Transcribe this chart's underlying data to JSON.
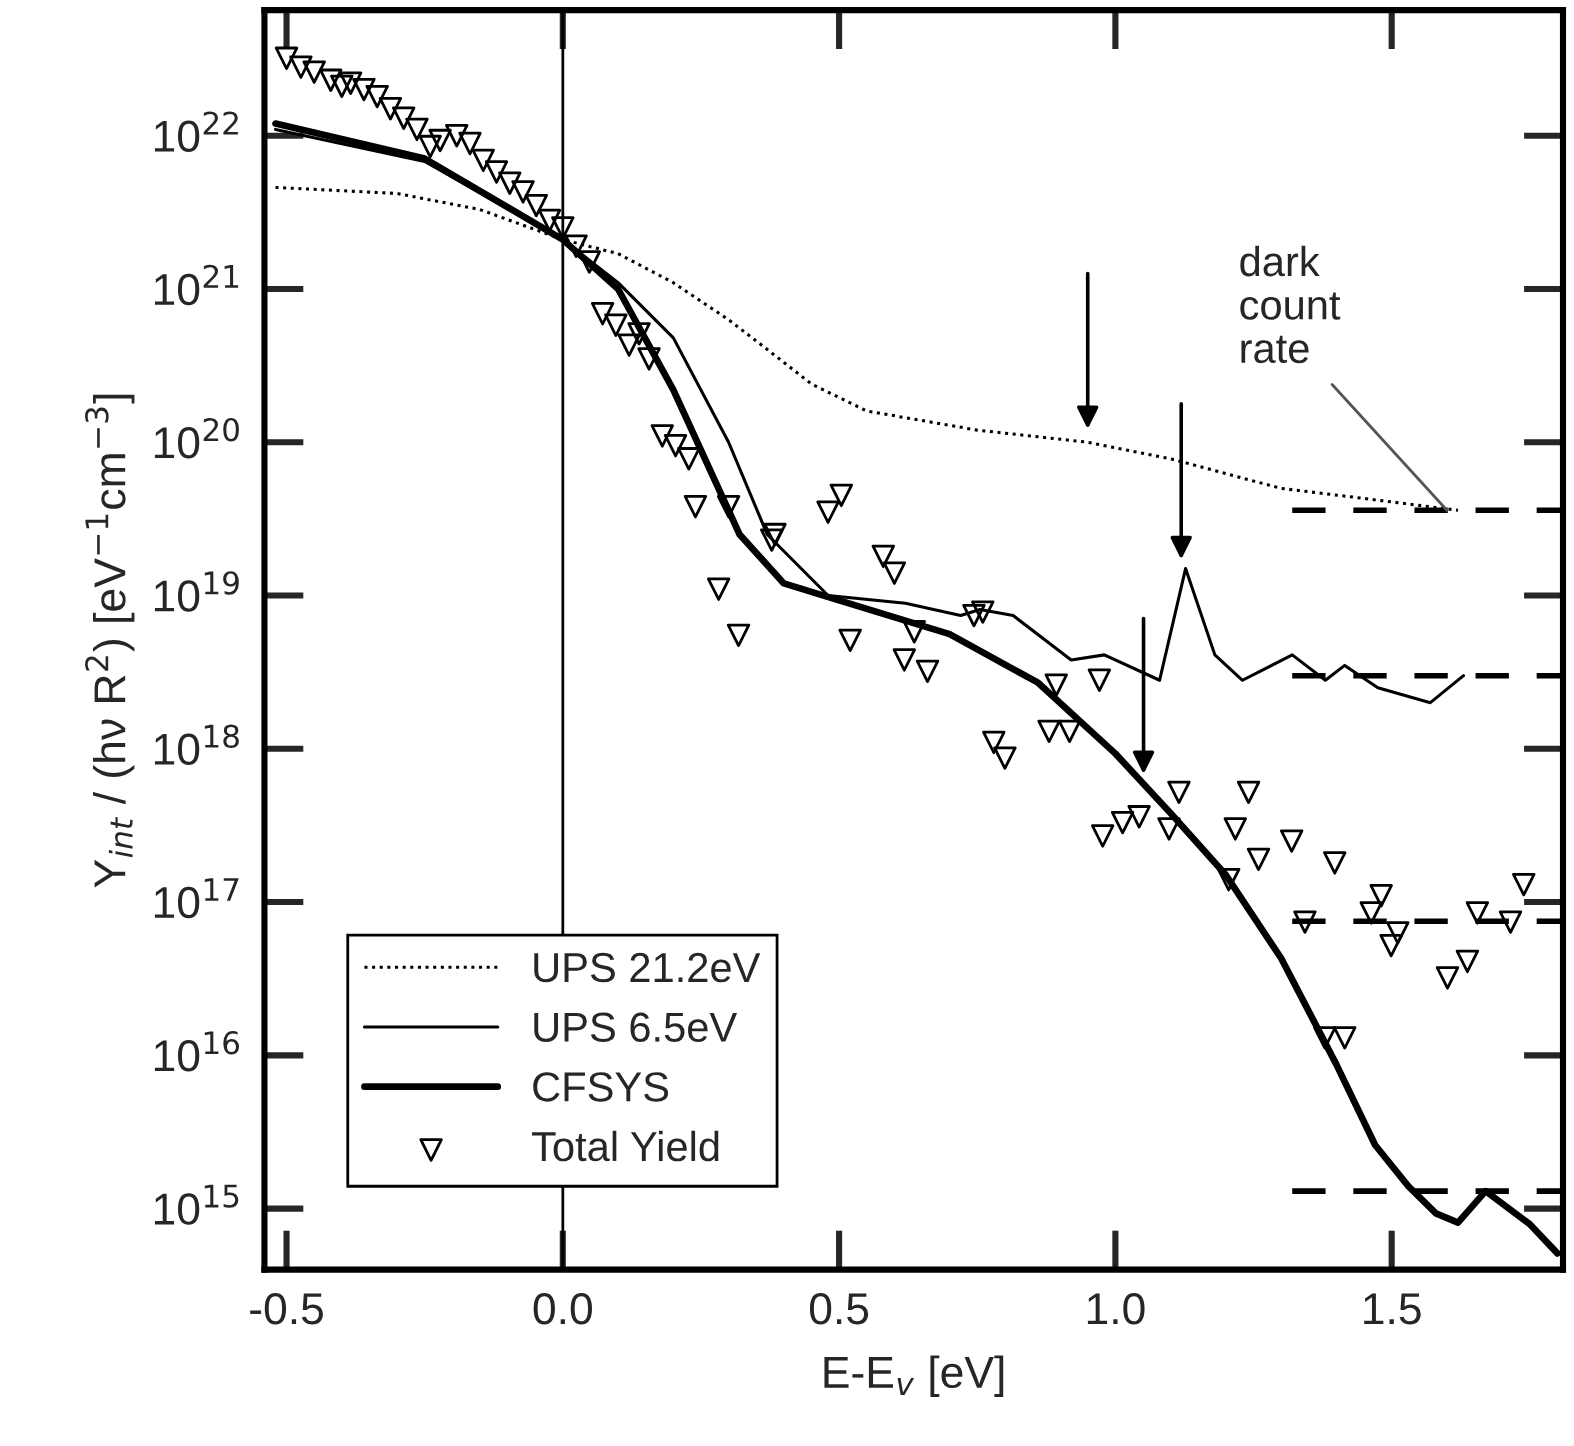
{
  "chart_data": {
    "type": "line",
    "xlabel": "E-E$_{v}$ [eV]",
    "ylabel": "Y$_{int}$ / (hν R$^{2}$) [eV$^{−1}$cm$^{−3}$]",
    "log": "y",
    "xlim": [
      -0.54,
      1.81
    ],
    "ylim": [
      400000000000000.0,
      6.6e+22
    ],
    "xticks": [
      -0.5,
      {
        "value": 0,
        "label": "0.0"
      },
      0.5,
      {
        "value": 1,
        "label": "1.0"
      },
      1.5
    ],
    "yticks": [
      {
        "value": 1000000000000000.0,
        "label": "10$^{15}$"
      },
      {
        "value": 1e+16,
        "label": "10$^{16}$"
      },
      {
        "value": 1e+17,
        "label": "10$^{17}$"
      },
      {
        "value": 1e+18,
        "label": "10$^{18}$"
      },
      {
        "value": 1e+19,
        "label": "10$^{19}$"
      },
      {
        "value": 1e+20,
        "label": "10$^{20}$"
      },
      {
        "value": 1e+21,
        "label": "10$^{21}$"
      },
      {
        "value": 1e+22,
        "label": "10$^{22}$"
      }
    ],
    "legend": "bottom left",
    "ref_lines": [
      {
        "axis": "x",
        "value": 0,
        "color": "#000000",
        "line_style": "solid"
      }
    ],
    "annotations": [
      {
        "text": "dark\ncount\nrate",
        "x": 1.6,
        "y": 3.6e+19
      }
    ],
    "series": [
      {
        "name": "UPS 21.2eV",
        "color": "#000000",
        "line_style": "dotted",
        "x": [
          -0.52,
          -0.3,
          -0.15,
          0,
          0.1,
          0.2,
          0.3,
          0.36,
          0.45,
          0.55,
          0.75,
          0.95,
          1.1,
          1.3,
          1.45,
          1.62
        ],
        "values": [
          4.6e+21,
          4.2e+21,
          3.3e+21,
          2.1e+21,
          1.7e+21,
          1.1e+21,
          6.3e+20,
          4.3e+20,
          2.4e+20,
          1.6e+20,
          1.2e+20,
          1e+20,
          7.8e+19,
          5e+19,
          4.3e+19,
          3.6e+19
        ]
      },
      {
        "name": "UPS 6.5eV",
        "color": "#000000",
        "line_style": "solid",
        "x": [
          -0.52,
          -0.25,
          0,
          0.1,
          0.2,
          0.3,
          0.37,
          0.48,
          0.62,
          0.72,
          0.755,
          0.815,
          0.92,
          0.98,
          1.08,
          1.127,
          1.18,
          1.23,
          1.32,
          1.38,
          1.415,
          1.475,
          1.57,
          1.63
        ],
        "values": [
          1.1e+22,
          6.8e+21,
          2.1e+21,
          1.1e+21,
          4.8e+20,
          1e+20,
          2.5e+19,
          1e+19,
          8.9e+18,
          7.4e+18,
          8.1e+18,
          7.4e+18,
          3.8e+18,
          4.1e+18,
          2.8e+18,
          1.5e+19,
          4.1e+18,
          2.8e+18,
          4.1e+18,
          2.8e+18,
          3.5e+18,
          2.5e+18,
          2e+18,
          3e+18
        ]
      },
      {
        "name": "CFSYS",
        "color": "#000000",
        "line_style": "solid",
        "x": [
          -0.52,
          -0.25,
          0,
          0.1,
          0.2,
          0.32,
          0.4,
          0.5,
          0.7,
          0.86,
          1.0,
          1.1,
          1.2,
          1.3,
          1.4,
          1.47,
          1.53,
          1.58,
          1.62,
          1.67,
          1.75,
          1.8
        ],
        "values": [
          1.2e+22,
          7.1e+21,
          2.1e+21,
          1e+21,
          2.2e+20,
          2.5e+19,
          1.2e+19,
          9.3e+18,
          5.6e+18,
          2.7e+18,
          9.3e+17,
          3.8e+17,
          1.5e+17,
          4.3e+16,
          8700000000000000.0,
          2600000000000000.0,
          1400000000000000.0,
          930000000000000.0,
          810000000000000.0,
          1300000000000000.0,
          790000000000000.0,
          510000000000000.0
        ]
      },
      {
        "name": "Total Yield",
        "type": "scatter",
        "color": "#000000",
        "marker": "triangle",
        "x": [
          -0.5,
          -0.474,
          -0.45,
          -0.42,
          -0.4,
          -0.384,
          -0.36,
          -0.336,
          -0.312,
          -0.288,
          -0.264,
          -0.24,
          -0.222,
          -0.192,
          -0.168,
          -0.144,
          -0.12,
          -0.096,
          -0.072,
          -0.048,
          -0.024,
          0,
          0.024,
          0.048,
          0.072,
          0.096,
          0.12,
          0.138,
          0.156,
          0.18,
          0.204,
          0.228,
          0.24,
          0.3,
          0.282,
          0.318,
          0.378,
          0.384,
          0.48,
          0.504,
          0.58,
          0.6,
          0.52,
          0.636,
          0.618,
          0.66,
          0.744,
          0.76,
          0.893,
          0.971,
          0.78,
          0.8,
          0.88,
          0.917,
          0.977,
          1.013,
          1.043,
          1.097,
          1.115,
          1.205,
          1.217,
          1.241,
          1.259,
          1.319,
          1.343,
          1.397,
          1.379,
          1.415,
          1.463,
          1.481,
          1.499,
          1.511,
          1.601,
          1.637,
          1.655,
          1.715,
          1.739
        ],
        "values": [
          3.2e+22,
          2.8e+22,
          2.6e+22,
          2.3e+22,
          2.1e+22,
          2.2e+22,
          2e+22,
          1.8e+22,
          1.5e+22,
          1.3e+22,
          1.1e+22,
          8.5e+21,
          9.3e+21,
          1e+22,
          8.9e+21,
          6.9e+21,
          5.8e+21,
          4.9e+21,
          4.3e+21,
          3.5e+21,
          2.8e+21,
          2.5e+21,
          1.9e+21,
          1.5e+21,
          6.9e+20,
          5.8e+20,
          4.3e+20,
          5.1e+20,
          3.5e+20,
          1.1e+20,
          9.5e+19,
          7.8e+19,
          3.8e+19,
          3.8e+19,
          1.1e+19,
          5.5e+18,
          2.3e+19,
          2.5e+19,
          3.5e+19,
          4.5e+19,
          1.8e+19,
          1.4e+19,
          5.1e+18,
          5.8e+18,
          3.8e+18,
          3.2e+18,
          7.4e+18,
          7.8e+18,
          2.6e+18,
          2.8e+18,
          1.1e+18,
          8.7e+17,
          1.3e+18,
          1.3e+18,
          2.7e+17,
          3.3e+17,
          3.6e+17,
          3e+17,
          5.2e+17,
          1.4e+17,
          3e+17,
          5.2e+17,
          1.9e+17,
          2.5e+17,
          7.4e+16,
          1.8e+17,
          1.3e+16,
          1.3e+16,
          8.5e+16,
          1.1e+17,
          5.2e+16,
          6.3e+16,
          3.2e+16,
          4.1e+16,
          8.5e+16,
          7.4e+16,
          1.3e+17
        ]
      },
      {
        "type": "line",
        "color": "#000000",
        "line_style": "dashed",
        "x": [
          1.32,
          1.81
        ],
        "values": [
          3.6e+19,
          3.6e+19
        ]
      },
      {
        "type": "line",
        "color": "#000000",
        "line_style": "dashed",
        "x": [
          1.32,
          1.81
        ],
        "values": [
          3e+18,
          3e+18
        ]
      },
      {
        "type": "line",
        "color": "#000000",
        "line_style": "dashed",
        "x": [
          1.32,
          1.81
        ],
        "values": [
          7.5e+16,
          7.5e+16
        ]
      },
      {
        "type": "line",
        "color": "#000000",
        "line_style": "dashed",
        "x": [
          1.32,
          1.81
        ],
        "values": [
          1300000000000000.0,
          1300000000000000.0
        ]
      }
    ]
  }
}
